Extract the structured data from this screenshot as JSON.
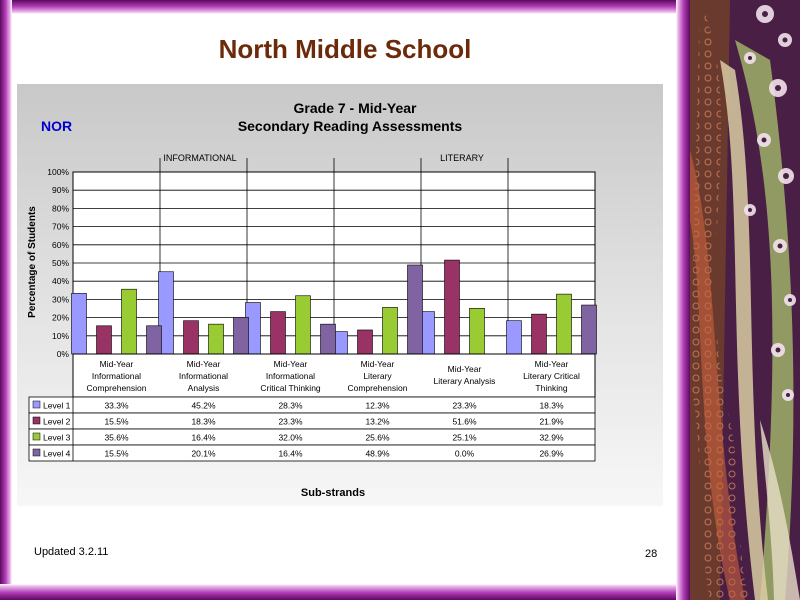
{
  "slide": {
    "title": "North Middle School",
    "footer_updated": "Updated  3.2.11",
    "page_number": "28"
  },
  "chart_data": {
    "type": "bar",
    "title": "Grade 7 - Mid-Year",
    "subtitle": "Secondary Reading Assessments",
    "school_code": "NOR",
    "group_labels": [
      "INFORMATIONAL",
      "LITERARY"
    ],
    "ylabel": "Percentage of Students",
    "xlabel": "Sub-strands",
    "ylim": [
      0,
      100
    ],
    "y_ticks": [
      "0%",
      "10%",
      "20%",
      "30%",
      "40%",
      "50%",
      "60%",
      "70%",
      "80%",
      "90%",
      "100%"
    ],
    "grid": true,
    "legend_placement": "data-table",
    "categories": [
      [
        "Mid-Year",
        "Informational",
        "Comprehension"
      ],
      [
        "Mid-Year",
        "Informational",
        "Analysis"
      ],
      [
        "Mid-Year",
        "Informational",
        "Critical Thinking"
      ],
      [
        "Mid-Year",
        "Literary",
        "Comprehension"
      ],
      [
        "Mid-Year",
        "Literary Analysis"
      ],
      [
        "Mid-Year",
        "Literary Critical",
        "Thinking"
      ]
    ],
    "series": [
      {
        "name": "Level 1",
        "color": "#9999ff",
        "values": [
          33.3,
          45.2,
          28.3,
          12.3,
          23.3,
          18.3
        ],
        "labels": [
          "33.3%",
          "45.2%",
          "28.3%",
          "12.3%",
          "23.3%",
          "18.3%"
        ]
      },
      {
        "name": "Level 2",
        "color": "#993366",
        "values": [
          15.5,
          18.3,
          23.3,
          13.2,
          51.6,
          21.9
        ],
        "labels": [
          "15.5%",
          "18.3%",
          "23.3%",
          "13.2%",
          "51.6%",
          "21.9%"
        ]
      },
      {
        "name": "Level 3",
        "color": "#99cc33",
        "values": [
          35.6,
          16.4,
          32.0,
          25.6,
          25.1,
          32.9
        ],
        "labels": [
          "35.6%",
          "16.4%",
          "32.0%",
          "25.6%",
          "25.1%",
          "32.9%"
        ]
      },
      {
        "name": "Level 4",
        "color": "#8064a2",
        "values": [
          15.5,
          20.1,
          16.4,
          48.9,
          0.0,
          26.9
        ],
        "labels": [
          "15.5%",
          "20.1%",
          "16.4%",
          "48.9%",
          "0.0%",
          "26.9%"
        ]
      }
    ]
  }
}
